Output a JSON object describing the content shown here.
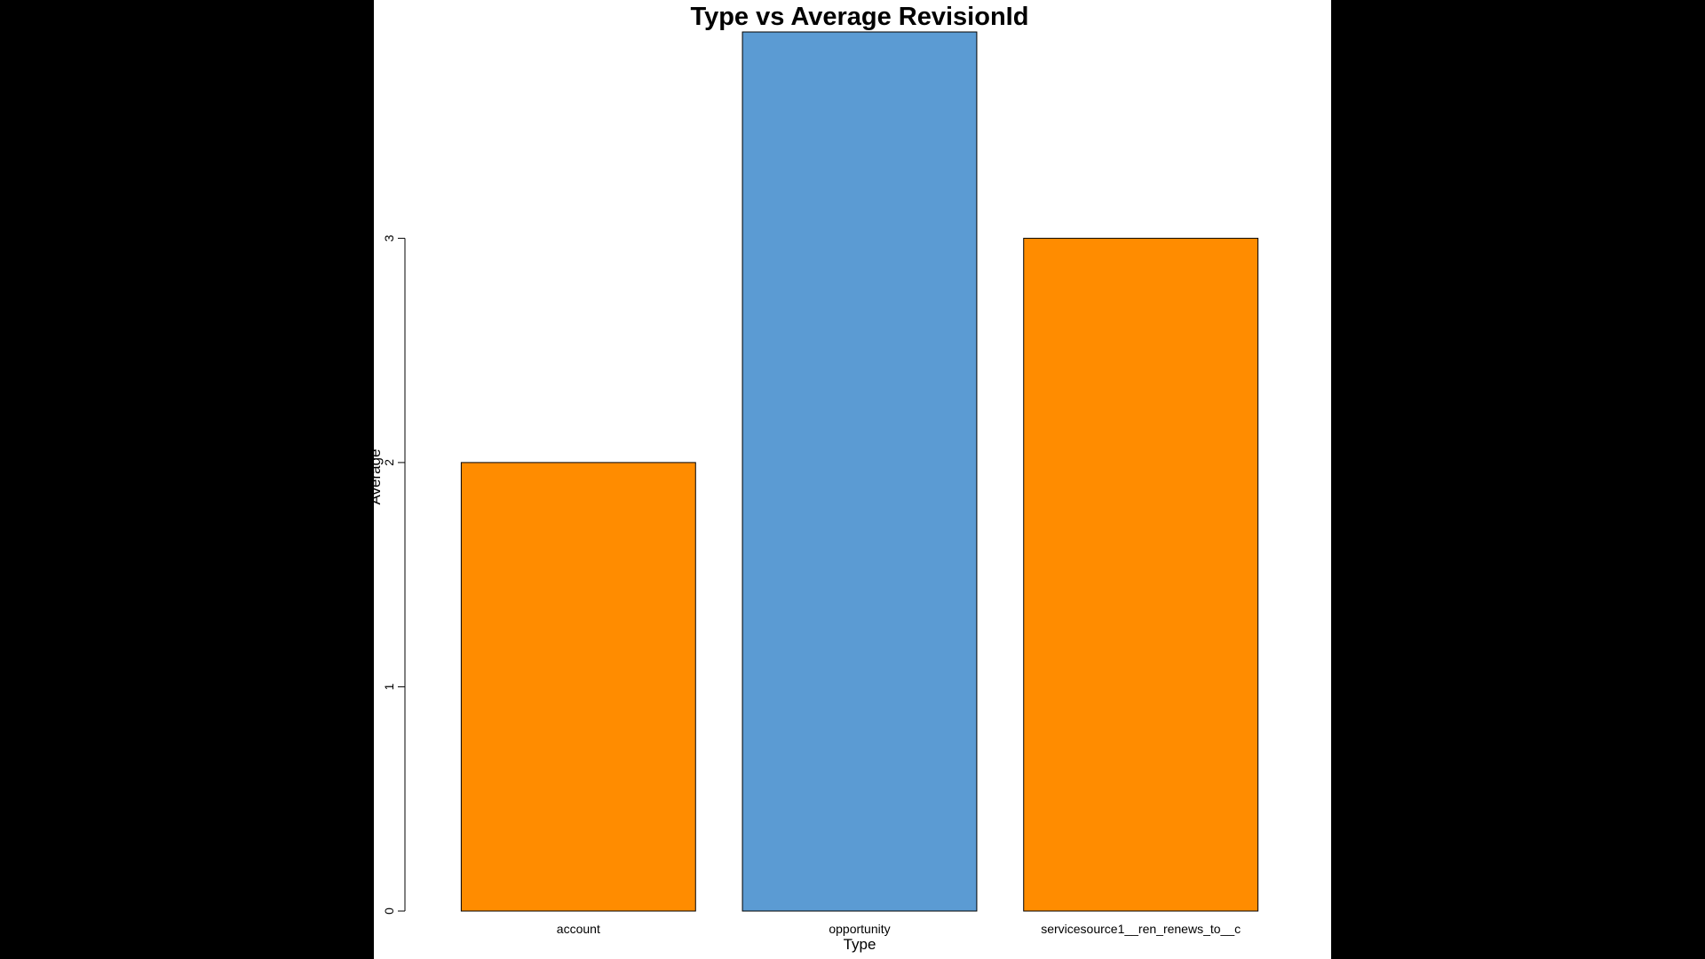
{
  "chart_data": {
    "type": "bar",
    "title": "Type vs Average RevisionId",
    "xlabel": "Type",
    "ylabel": "Average",
    "categories": [
      "account",
      "opportunity",
      "servicesource1__ren_renews_to__c"
    ],
    "values": [
      2,
      3.92,
      3
    ],
    "bar_colors": [
      "#ff8c00",
      "#5b9bd3",
      "#ff8c00"
    ],
    "ylim": [
      0,
      3.92
    ],
    "yticks": [
      "0",
      "1",
      "2",
      "3"
    ],
    "grid": false,
    "legend": "none"
  },
  "colors": {
    "background": "#000000",
    "plot_background": "#ffffff",
    "bar_stroke": "#000000"
  }
}
